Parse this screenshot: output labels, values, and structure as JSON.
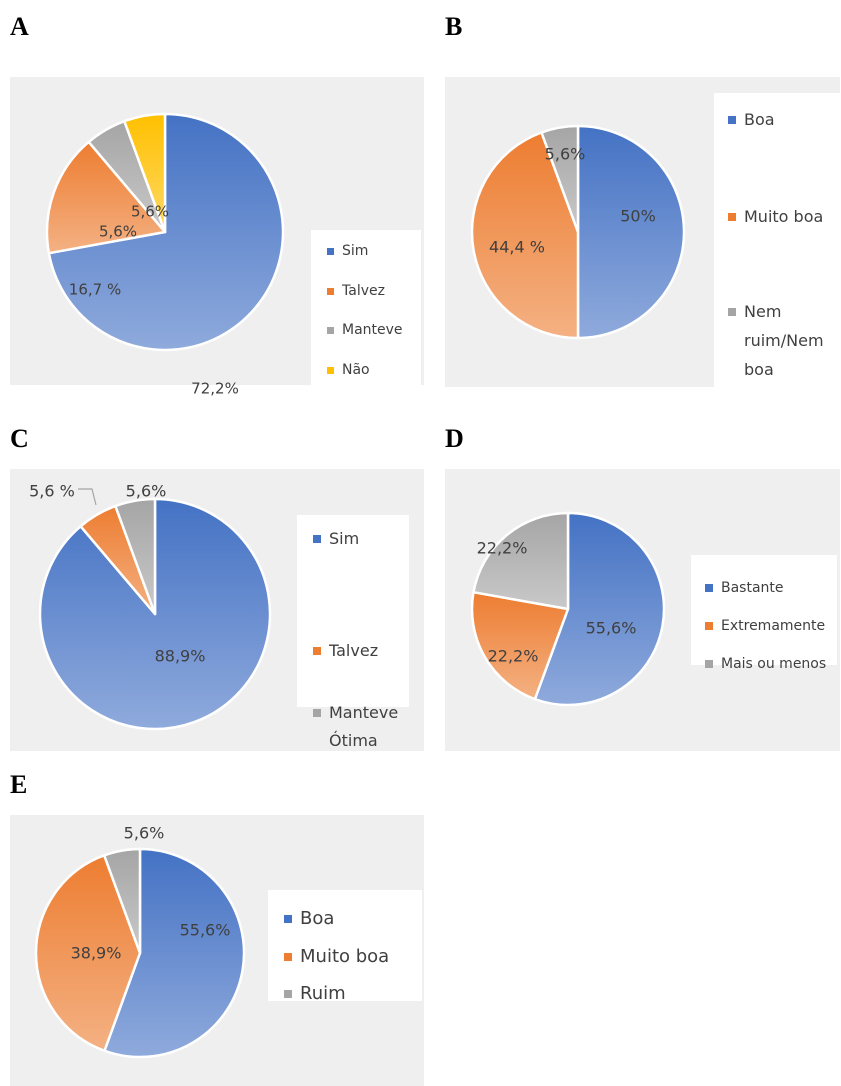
{
  "chart_data": [
    {
      "panel": "A",
      "type": "pie",
      "categories": [
        "Sim",
        "Talvez",
        "Manteve",
        "Não"
      ],
      "values": [
        72.2,
        16.7,
        5.6,
        5.6
      ],
      "labels": [
        "72,2%",
        "16,7 %",
        "5,6%",
        "5,6%"
      ],
      "colors": [
        "#4472C4",
        "#ED7D31",
        "#A5A5A5",
        "#FFC000"
      ]
    },
    {
      "panel": "B",
      "type": "pie",
      "categories": [
        "Boa",
        "Muito boa",
        "Nem ruim/Nem boa"
      ],
      "legend_lines": [
        [
          "Boa"
        ],
        [
          "Muito boa"
        ],
        [
          "Nem",
          "ruim/Nem",
          "boa"
        ]
      ],
      "values": [
        50.0,
        44.4,
        5.6
      ],
      "labels": [
        "50%",
        "44,4 %",
        "5,6%"
      ],
      "colors": [
        "#4472C4",
        "#ED7D31",
        "#A5A5A5"
      ]
    },
    {
      "panel": "C",
      "type": "pie",
      "categories": [
        "Sim",
        "Talvez",
        "Manteve Ótima"
      ],
      "legend_lines": [
        [
          "Sim"
        ],
        [
          "Talvez"
        ],
        [
          "Manteve",
          "Ótima"
        ]
      ],
      "values": [
        88.9,
        5.6,
        5.6
      ],
      "labels": [
        "88,9%",
        "5,6 %",
        "5,6%"
      ],
      "colors": [
        "#4472C4",
        "#ED7D31",
        "#A5A5A5"
      ]
    },
    {
      "panel": "D",
      "type": "pie",
      "categories": [
        "Bastante",
        "Extremamente",
        "Mais ou menos"
      ],
      "values": [
        55.6,
        22.2,
        22.2
      ],
      "labels": [
        "55,6%",
        "22,2%",
        "22,2%"
      ],
      "colors": [
        "#4472C4",
        "#ED7D31",
        "#A5A5A5"
      ]
    },
    {
      "panel": "E",
      "type": "pie",
      "categories": [
        "Boa",
        "Muito boa",
        "Ruim"
      ],
      "values": [
        55.6,
        38.9,
        5.6
      ],
      "labels": [
        "55,6%",
        "38,9%",
        "5,6%"
      ],
      "colors": [
        "#4472C4",
        "#ED7D31",
        "#A5A5A5"
      ]
    }
  ]
}
